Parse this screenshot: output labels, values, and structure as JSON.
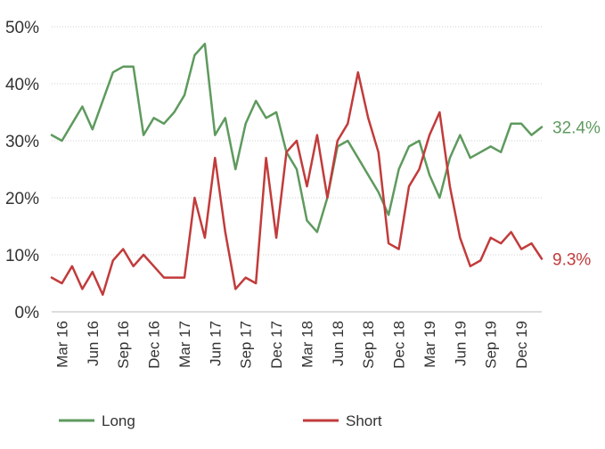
{
  "chart_data": {
    "type": "line",
    "title": "",
    "xlabel": "",
    "ylabel": "",
    "ylim": [
      0,
      50
    ],
    "yticks": [
      "0%",
      "10%",
      "20%",
      "30%",
      "40%",
      "50%"
    ],
    "ytick_values": [
      0,
      10,
      20,
      30,
      40,
      50
    ],
    "grid": "horizontal dotted",
    "legend_position": "bottom",
    "x_tick_labels": [
      "Mar 16",
      "Jun 16",
      "Sep 16",
      "Dec 16",
      "Mar 17",
      "Jun 17",
      "Sep 17",
      "Dec 17",
      "Mar 18",
      "Jun 18",
      "Sep 18",
      "Dec 18",
      "Mar 19",
      "Jun 19",
      "Sep 19",
      "Dec 19"
    ],
    "x": [
      "Feb 16",
      "Mar 16",
      "Apr 16",
      "May 16",
      "Jun 16",
      "Jul 16",
      "Aug 16",
      "Sep 16",
      "Oct 16",
      "Nov 16",
      "Dec 16",
      "Jan 17",
      "Feb 17",
      "Mar 17",
      "Apr 17",
      "May 17",
      "Jun 17",
      "Jul 17",
      "Aug 17",
      "Sep 17",
      "Oct 17",
      "Nov 17",
      "Dec 17",
      "Jan 18",
      "Feb 18",
      "Mar 18",
      "Apr 18",
      "May 18",
      "Jun 18",
      "Jul 18",
      "Aug 18",
      "Sep 18",
      "Oct 18",
      "Nov 18",
      "Dec 18",
      "Jan 19",
      "Feb 19",
      "Mar 19",
      "Apr 19",
      "May 19",
      "Jun 19",
      "Jul 19",
      "Aug 19",
      "Sep 19",
      "Oct 19",
      "Nov 19",
      "Dec 19",
      "Jan 20",
      "Feb 20"
    ],
    "series": [
      {
        "name": "Long",
        "color": "#5e9a5e",
        "end_label": "32.4%",
        "values": [
          31,
          30,
          33,
          36,
          32,
          37,
          42,
          43,
          43,
          31,
          34,
          33,
          35,
          38,
          45,
          47,
          31,
          34,
          25,
          33,
          37,
          34,
          35,
          28,
          25,
          16,
          14,
          20,
          29,
          30,
          27,
          24,
          21,
          17,
          25,
          29,
          30,
          24,
          20,
          27,
          31,
          27,
          28,
          29,
          28,
          33,
          33,
          31,
          32.4
        ]
      },
      {
        "name": "Short",
        "color": "#c23b3b",
        "end_label": "9.3%",
        "values": [
          6,
          5,
          8,
          4,
          7,
          3,
          9,
          11,
          8,
          10,
          8,
          6,
          6,
          6,
          20,
          13,
          27,
          14,
          4,
          6,
          5,
          27,
          13,
          28,
          30,
          22,
          31,
          20,
          30,
          33,
          42,
          34,
          28,
          12,
          11,
          22,
          25,
          31,
          35,
          22,
          13,
          8,
          9,
          13,
          12,
          14,
          11,
          12,
          9.3
        ]
      }
    ]
  }
}
